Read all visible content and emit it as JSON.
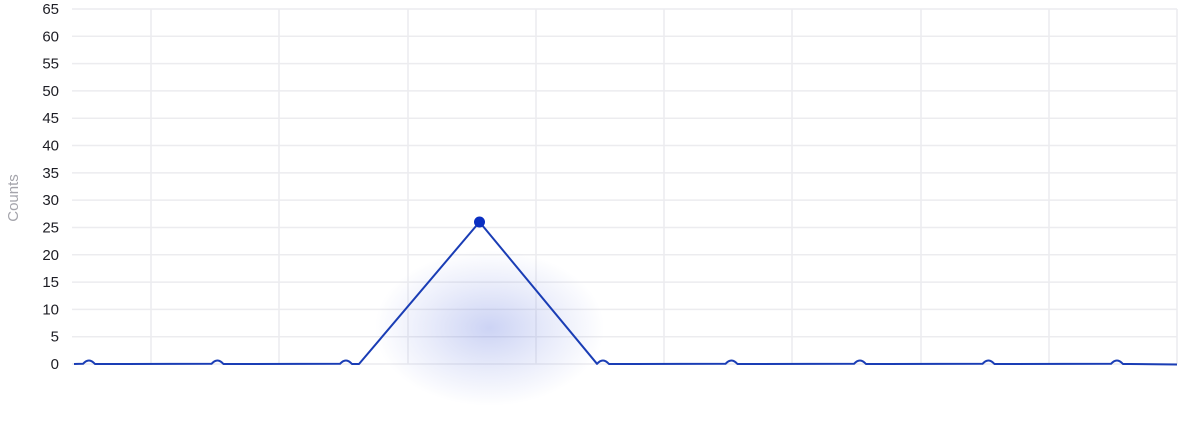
{
  "chart_data": {
    "type": "line",
    "ylabel": "Counts",
    "xlabel": "",
    "ylim": [
      0,
      65
    ],
    "yticks": [
      0,
      5,
      10,
      15,
      20,
      25,
      30,
      35,
      40,
      45,
      50,
      55,
      60,
      65
    ],
    "grid": true,
    "x": [
      0,
      1,
      2,
      3,
      4,
      5,
      6,
      7,
      8
    ],
    "series": [
      {
        "color": "#1a3db5",
        "values": [
          0,
          0,
          0,
          26,
          0,
          0,
          0,
          0,
          0
        ]
      }
    ],
    "highlight_index": 3,
    "highlight_glow_color": "#4a63d9"
  }
}
